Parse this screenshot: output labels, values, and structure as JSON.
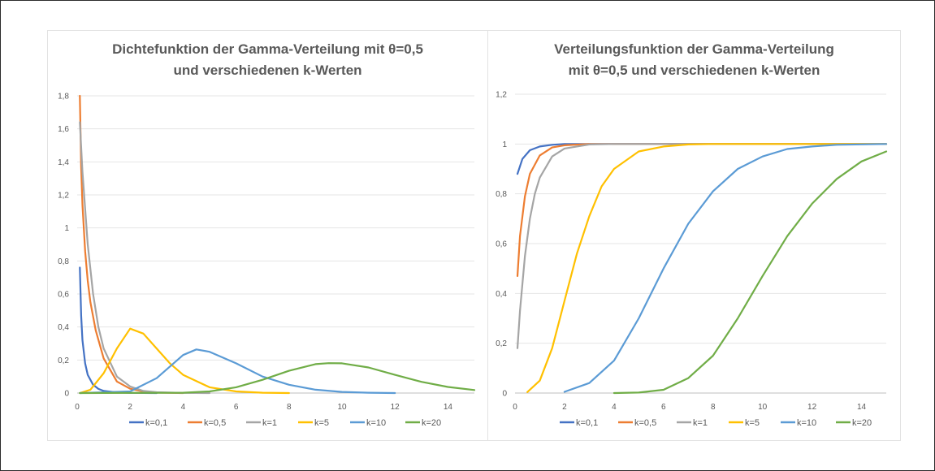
{
  "chart_data": [
    {
      "type": "line",
      "title_line1": "Dichtefunktion der Gamma-Verteilung mit θ=0,5",
      "title_line2": "und verschiedenen k-Werten",
      "xlim": [
        0,
        15
      ],
      "ylim": [
        0,
        1.8
      ],
      "x_ticks": [
        "0",
        "2",
        "4",
        "6",
        "8",
        "10",
        "12",
        "14"
      ],
      "y_ticks": [
        "0",
        "0,2",
        "0,4",
        "0,6",
        "0,8",
        "1",
        "1,2",
        "1,4",
        "1,6",
        "1,8"
      ],
      "grid": "horizontal",
      "legend_position": "bottom",
      "theta": 0.5,
      "function": "pdf",
      "series": [
        {
          "name": "k=0,1",
          "k": 0.1,
          "color": "#4472C4",
          "points": [
            [
              0.1,
              0.76
            ],
            [
              0.15,
              0.47
            ],
            [
              0.2,
              0.32
            ],
            [
              0.3,
              0.18
            ],
            [
              0.4,
              0.11
            ],
            [
              0.6,
              0.05
            ],
            [
              0.8,
              0.025
            ],
            [
              1,
              0.013
            ],
            [
              1.5,
              0.004
            ],
            [
              2,
              0.001
            ],
            [
              3,
              0
            ]
          ]
        },
        {
          "name": "k=0,5",
          "k": 0.5,
          "color": "#ED7D31",
          "points": [
            [
              0.1,
              1.8
            ],
            [
              0.15,
              1.37
            ],
            [
              0.2,
              1.14
            ],
            [
              0.3,
              0.86
            ],
            [
              0.4,
              0.68
            ],
            [
              0.5,
              0.55
            ],
            [
              0.7,
              0.38
            ],
            [
              1,
              0.21
            ],
            [
              1.5,
              0.07
            ],
            [
              2,
              0.026
            ],
            [
              2.5,
              0.01
            ],
            [
              3,
              0.003
            ],
            [
              4,
              0
            ]
          ]
        },
        {
          "name": "k=1",
          "k": 1,
          "color": "#A5A5A5",
          "points": [
            [
              0.1,
              1.64
            ],
            [
              0.2,
              1.34
            ],
            [
              0.4,
              0.9
            ],
            [
              0.6,
              0.6
            ],
            [
              0.8,
              0.4
            ],
            [
              1,
              0.27
            ],
            [
              1.5,
              0.1
            ],
            [
              2,
              0.04
            ],
            [
              2.5,
              0.013
            ],
            [
              3,
              0.005
            ],
            [
              4,
              0.001
            ],
            [
              5,
              0
            ]
          ]
        },
        {
          "name": "k=5",
          "k": 5,
          "color": "#FFC000",
          "points": [
            [
              0.1,
              0
            ],
            [
              0.5,
              0.02
            ],
            [
              1,
              0.12
            ],
            [
              1.5,
              0.27
            ],
            [
              2,
              0.39
            ],
            [
              2.5,
              0.36
            ],
            [
              3,
              0.27
            ],
            [
              3.5,
              0.18
            ],
            [
              4,
              0.11
            ],
            [
              5,
              0.035
            ],
            [
              6,
              0.01
            ],
            [
              7,
              0.002
            ],
            [
              8,
              0
            ]
          ]
        },
        {
          "name": "k=10",
          "k": 10,
          "color": "#5B9BD5",
          "points": [
            [
              0.1,
              0
            ],
            [
              2,
              0.01
            ],
            [
              3,
              0.09
            ],
            [
              4,
              0.23
            ],
            [
              4.5,
              0.264
            ],
            [
              5,
              0.25
            ],
            [
              6,
              0.18
            ],
            [
              7,
              0.1
            ],
            [
              8,
              0.05
            ],
            [
              9,
              0.02
            ],
            [
              10,
              0.007
            ],
            [
              11,
              0.002
            ],
            [
              12,
              0
            ]
          ]
        },
        {
          "name": "k=20",
          "k": 20,
          "color": "#70AD47",
          "points": [
            [
              0.1,
              0
            ],
            [
              4,
              0.002
            ],
            [
              5,
              0.01
            ],
            [
              6,
              0.035
            ],
            [
              7,
              0.08
            ],
            [
              8,
              0.135
            ],
            [
              9,
              0.175
            ],
            [
              9.5,
              0.181
            ],
            [
              10,
              0.18
            ],
            [
              11,
              0.155
            ],
            [
              12,
              0.11
            ],
            [
              13,
              0.068
            ],
            [
              14,
              0.037
            ],
            [
              15,
              0.018
            ]
          ]
        }
      ]
    },
    {
      "type": "line",
      "title_line1": "Verteilungsfunktion der Gamma-Verteilung",
      "title_line2": "mit θ=0,5 und verschiedenen k-Werten",
      "xlim": [
        0,
        15
      ],
      "ylim": [
        0,
        1.2
      ],
      "x_ticks": [
        "0",
        "2",
        "4",
        "6",
        "8",
        "10",
        "12",
        "14"
      ],
      "y_ticks": [
        "0",
        "0,2",
        "0,4",
        "0,6",
        "0,8",
        "1",
        "1,2"
      ],
      "grid": "horizontal",
      "legend_position": "bottom",
      "theta": 0.5,
      "function": "cdf",
      "series": [
        {
          "name": "k=0,1",
          "k": 0.1,
          "color": "#4472C4",
          "points": [
            [
              0.1,
              0.88
            ],
            [
              0.3,
              0.94
            ],
            [
              0.6,
              0.975
            ],
            [
              1,
              0.99
            ],
            [
              1.5,
              0.997
            ],
            [
              2,
              1
            ],
            [
              15,
              1
            ]
          ]
        },
        {
          "name": "k=0,5",
          "k": 0.5,
          "color": "#ED7D31",
          "points": [
            [
              0.1,
              0.47
            ],
            [
              0.2,
              0.63
            ],
            [
              0.4,
              0.79
            ],
            [
              0.6,
              0.88
            ],
            [
              1,
              0.954
            ],
            [
              1.5,
              0.986
            ],
            [
              2,
              0.995
            ],
            [
              3,
              1
            ],
            [
              15,
              1
            ]
          ]
        },
        {
          "name": "k=1",
          "k": 1,
          "color": "#A5A5A5",
          "points": [
            [
              0.1,
              0.18
            ],
            [
              0.2,
              0.33
            ],
            [
              0.4,
              0.55
            ],
            [
              0.6,
              0.7
            ],
            [
              0.8,
              0.8
            ],
            [
              1,
              0.865
            ],
            [
              1.5,
              0.95
            ],
            [
              2,
              0.982
            ],
            [
              3,
              0.998
            ],
            [
              4,
              1
            ],
            [
              15,
              1
            ]
          ]
        },
        {
          "name": "k=5",
          "k": 5,
          "color": "#FFC000",
          "points": [
            [
              0.5,
              0.004
            ],
            [
              1,
              0.05
            ],
            [
              1.5,
              0.18
            ],
            [
              2,
              0.37
            ],
            [
              2.5,
              0.56
            ],
            [
              3,
              0.71
            ],
            [
              3.5,
              0.83
            ],
            [
              4,
              0.9
            ],
            [
              5,
              0.97
            ],
            [
              6,
              0.99
            ],
            [
              7,
              0.998
            ],
            [
              8,
              1
            ],
            [
              15,
              1
            ]
          ]
        },
        {
          "name": "k=10",
          "k": 10,
          "color": "#5B9BD5",
          "points": [
            [
              2,
              0.005
            ],
            [
              3,
              0.04
            ],
            [
              4,
              0.13
            ],
            [
              5,
              0.3
            ],
            [
              6,
              0.5
            ],
            [
              7,
              0.68
            ],
            [
              8,
              0.81
            ],
            [
              9,
              0.9
            ],
            [
              10,
              0.95
            ],
            [
              11,
              0.98
            ],
            [
              12,
              0.99
            ],
            [
              13,
              0.997
            ],
            [
              15,
              1
            ]
          ]
        },
        {
          "name": "k=20",
          "k": 20,
          "color": "#70AD47",
          "points": [
            [
              4,
              0
            ],
            [
              5,
              0.002
            ],
            [
              6,
              0.013
            ],
            [
              7,
              0.06
            ],
            [
              8,
              0.15
            ],
            [
              9,
              0.3
            ],
            [
              10,
              0.47
            ],
            [
              11,
              0.63
            ],
            [
              12,
              0.76
            ],
            [
              13,
              0.86
            ],
            [
              14,
              0.93
            ],
            [
              15,
              0.97
            ]
          ]
        }
      ]
    }
  ]
}
